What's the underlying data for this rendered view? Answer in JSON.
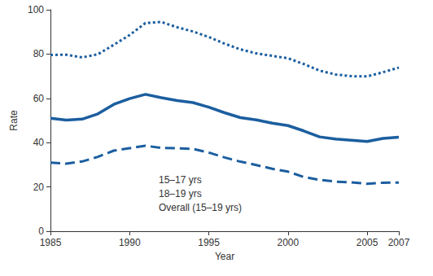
{
  "chart_data": {
    "type": "line",
    "x_label": "Year",
    "y_label": "Rate",
    "x": [
      1985,
      1986,
      1987,
      1988,
      1989,
      1990,
      1991,
      1992,
      1993,
      1994,
      1995,
      1996,
      1997,
      1998,
      1999,
      2000,
      2001,
      2002,
      2003,
      2004,
      2005,
      2006,
      2007
    ],
    "series": [
      {
        "name": "15–17 yrs",
        "color": "#1b5e9f",
        "line_style": "dashed",
        "values": [
          31,
          30.5,
          31.5,
          33.6,
          36.4,
          37.5,
          38.6,
          37.6,
          37.5,
          37.2,
          35.5,
          33.3,
          31.4,
          29.9,
          28.2,
          26.9,
          24.5,
          23.2,
          22.4,
          22.1,
          21.4,
          21.9,
          22
        ]
      },
      {
        "name": "18–19 yrs",
        "color": "#1b5e9f",
        "line_style": "dotted",
        "values": [
          79.6,
          79.7,
          78.5,
          79.9,
          84.2,
          88.6,
          94,
          94.5,
          92.1,
          90.2,
          87.7,
          84.7,
          82.1,
          80.3,
          79.2,
          78.1,
          75.5,
          72.5,
          70.8,
          70,
          69.9,
          71.8,
          73.9
        ]
      },
      {
        "name": "Overall (15–19 yrs)",
        "color": "#1b5e9f",
        "line_style": "solid",
        "values": [
          51,
          50.2,
          50.6,
          53,
          57.3,
          59.9,
          61.8,
          60.3,
          59,
          58.1,
          56,
          53.5,
          51.3,
          50.3,
          48.8,
          47.7,
          45.3,
          42.6,
          41.6,
          41.1,
          40.5,
          41.9,
          42.5
        ]
      }
    ],
    "xlim": [
      1985,
      2007
    ],
    "xticks": [
      1985,
      1990,
      1995,
      2000,
      2005,
      2007
    ],
    "ylim": [
      0,
      100
    ],
    "yticks": [
      0,
      20,
      40,
      60,
      80,
      100
    ],
    "grid": false,
    "legend": "lower left"
  }
}
